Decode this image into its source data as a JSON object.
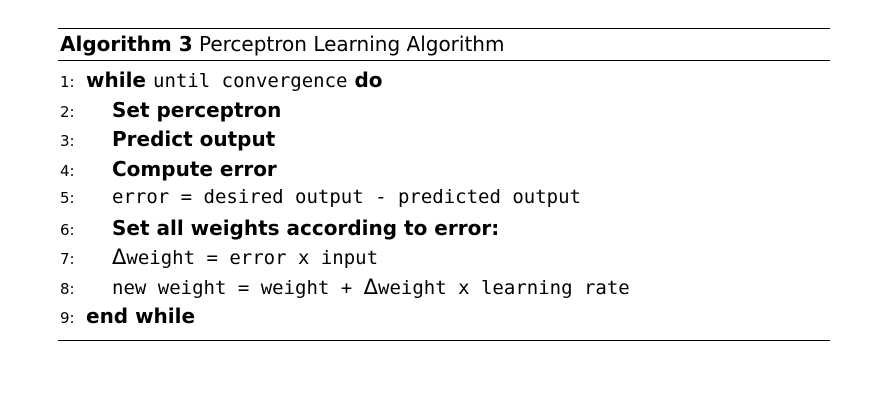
{
  "algorithm": {
    "label": "Algorithm 3",
    "title": "Perceptron Learning Algorithm",
    "lines": [
      {
        "num": "1:",
        "kw1": "while",
        "code": "until convergence",
        "kw2": "do"
      },
      {
        "num": "2:",
        "text": "Set perceptron"
      },
      {
        "num": "3:",
        "text": "Predict output"
      },
      {
        "num": "4:",
        "text": "Compute error"
      },
      {
        "num": "5:",
        "code": "error = desired output - predicted output"
      },
      {
        "num": "6:",
        "text": "Set all weights according to error:"
      },
      {
        "num": "7:",
        "delta": "Δ",
        "code": "weight = error x input"
      },
      {
        "num": "8:",
        "code_a": "new weight = weight + ",
        "delta": "Δ",
        "code_b": "weight x learning rate"
      },
      {
        "num": "9:",
        "kw": "end while"
      }
    ]
  }
}
